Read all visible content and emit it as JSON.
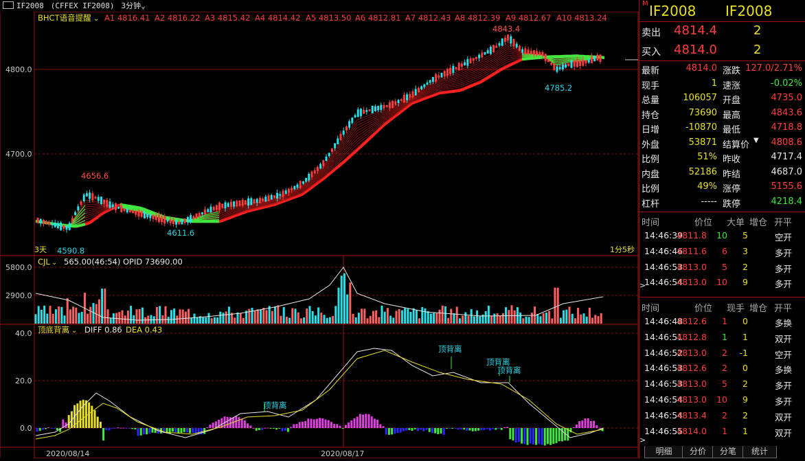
{
  "topbar": {
    "symbol": "IF2008",
    "exchange": "(CFFEX IF2008)",
    "period": "3分钟"
  },
  "main_chart": {
    "indicator_name": "BHCT语音提醒",
    "levels": [
      "A1 4816.41",
      "A2 4816.22",
      "A3 4815.42",
      "A4 4814.42",
      "A5 4813.50",
      "A6 4812.81",
      "A7 4812.43",
      "A8 4812.39",
      "A9 4812.67",
      "A10 4813.24"
    ],
    "y_ticks": [
      "4800.0",
      "4700.0"
    ],
    "annotations": {
      "peak_left": "4656.6",
      "low_left": "4590.8",
      "low_mid": "4611.6",
      "high_right": "4843.4",
      "low_right": "4785.2",
      "bottom_left_label": "3天",
      "bottom_right_label": "1分5秒"
    }
  },
  "vol_panel": {
    "name": "CJL",
    "info": "565.00(46:54)  OPID 73690.00",
    "y_ticks": [
      "5800.0",
      "2900.0"
    ]
  },
  "macd_panel": {
    "name": "顶底背离",
    "diff": "DIFF 0.86",
    "dea": "DEA 0.43",
    "y_ticks": [
      "40.0",
      "20.0",
      "0.0"
    ],
    "labels": [
      "顶背离",
      "顶背离",
      "顶背离",
      "顶背离"
    ]
  },
  "x_labels": [
    "2020/08/14",
    "2020/08/17"
  ],
  "right": {
    "header_code": "IF2008",
    "header_name": "IF2008",
    "sell_label": "卖出",
    "sell_price": "4814.4",
    "sell_vol": "2",
    "buy_label": "买入",
    "buy_price": "4814.0",
    "buy_vol": "2",
    "quote_left": [
      {
        "k": "最新",
        "v": "4814.0"
      },
      {
        "k": "现手",
        "v": "1"
      },
      {
        "k": "总量",
        "v": "106057"
      },
      {
        "k": "持仓",
        "v": "73690"
      },
      {
        "k": "日增",
        "v": "-10870"
      },
      {
        "k": "外盘",
        "v": "53871"
      },
      {
        "k": "比例",
        "v": "51%"
      },
      {
        "k": "内盘",
        "v": "52186"
      },
      {
        "k": "比例",
        "v": "49%"
      },
      {
        "k": "杠杆",
        "v": "-----"
      }
    ],
    "quote_right": [
      {
        "k": "涨跌",
        "v": "127.0/2.71%"
      },
      {
        "k": "速涨",
        "v": "-0.02%"
      },
      {
        "k": "开盘",
        "v": "4735.0"
      },
      {
        "k": "最高",
        "v": "4843.6"
      },
      {
        "k": "最低",
        "v": "4718.8"
      },
      {
        "k": "结算价",
        "v": "4808.6"
      },
      {
        "k": "昨收",
        "v": "4717.4"
      },
      {
        "k": "昨结",
        "v": "4687.0"
      },
      {
        "k": "涨停",
        "v": "5155.6"
      },
      {
        "k": "跌停",
        "v": "4218.4"
      }
    ],
    "t1_headers": [
      "时间",
      "价位",
      "大单",
      "增仓",
      "开平"
    ],
    "t1_rows": [
      [
        "14:46:39",
        "4811.8",
        "10",
        "5",
        "空开"
      ],
      [
        "14:46:46",
        "4811.6",
        "6",
        "3",
        "多开"
      ],
      [
        "14:46:53",
        "4813.0",
        "5",
        "2",
        "多开"
      ],
      [
        "14:46:54",
        "4813.0",
        "10",
        "9",
        "多开"
      ]
    ],
    "t2_headers": [
      "时间",
      "价位",
      "现手",
      "增仓",
      "开平"
    ],
    "t2_rows": [
      [
        "14:46:48",
        "4812.6",
        "1",
        "0",
        "多换"
      ],
      [
        "14:46:51",
        "4812.8",
        "1",
        "1",
        "双开"
      ],
      [
        "14:46:52",
        "4813.0",
        "2",
        "-1",
        "空开"
      ],
      [
        "14:46:53",
        "4812.6",
        "2",
        "0",
        "多换"
      ],
      [
        "14:46:53",
        "4813.0",
        "5",
        "2",
        "多开"
      ],
      [
        "14:46:54",
        "4813.0",
        "10",
        "9",
        "多开"
      ],
      [
        "14:46:54",
        "4813.4",
        "2",
        "2",
        "双开"
      ],
      [
        "14:46:55",
        "4814.0",
        "1",
        "1",
        "双开"
      ]
    ]
  },
  "tabs": [
    "明细",
    "分价",
    "分笔",
    "统计"
  ],
  "colors": {
    "up": "#ff3c3c",
    "down": "#28e0e8",
    "green": "#3ee83e",
    "yellow": "#e8e020",
    "grid": "#8a1010",
    "magenta": "#e040e0",
    "blue": "#2828ff"
  }
}
